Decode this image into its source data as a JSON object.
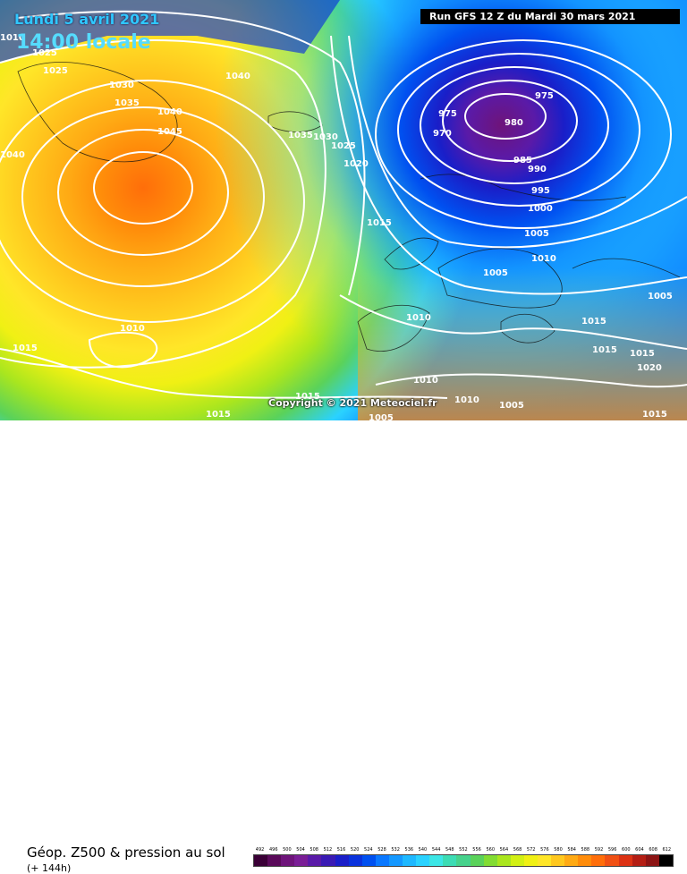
{
  "header": {
    "date": "Lundi 5 avril 2021",
    "time": "14:00 locale",
    "run": "Run GFS 12 Z du Mardi 30 mars 2021"
  },
  "copyright": "Copyright © 2021 Meteociel.fr",
  "footer": {
    "title": "Géop. Z500 & pression au sol",
    "lead": "(+ 144h)"
  },
  "isobars": [
    {
      "label": "1010"
    },
    {
      "label": "1025"
    },
    {
      "label": "1025"
    },
    {
      "label": "1030"
    },
    {
      "label": "1035"
    },
    {
      "label": "1040"
    },
    {
      "label": "1040"
    },
    {
      "label": "1045"
    },
    {
      "label": "1040"
    },
    {
      "label": "1035"
    },
    {
      "label": "1030"
    },
    {
      "label": "1025"
    },
    {
      "label": "1020"
    },
    {
      "label": "1015"
    },
    {
      "label": "975"
    },
    {
      "label": "970"
    },
    {
      "label": "975"
    },
    {
      "label": "980"
    },
    {
      "label": "985"
    },
    {
      "label": "990"
    },
    {
      "label": "995"
    },
    {
      "label": "1000"
    },
    {
      "label": "1005"
    },
    {
      "label": "1010"
    },
    {
      "label": "1005"
    },
    {
      "label": "1005"
    },
    {
      "label": "1010"
    },
    {
      "label": "1015"
    },
    {
      "label": "1015"
    },
    {
      "label": "1015"
    },
    {
      "label": "1020"
    },
    {
      "label": "1010"
    },
    {
      "label": "1015"
    },
    {
      "label": "1010"
    },
    {
      "label": "1010"
    },
    {
      "label": "1005"
    },
    {
      "label": "1015"
    },
    {
      "label": "1015"
    },
    {
      "label": "1005"
    },
    {
      "label": "1015"
    }
  ],
  "legend": {
    "values": [
      "492",
      "496",
      "500",
      "504",
      "508",
      "512",
      "516",
      "520",
      "524",
      "528",
      "532",
      "536",
      "540",
      "544",
      "548",
      "552",
      "556",
      "560",
      "564",
      "568",
      "572",
      "576",
      "580",
      "584",
      "588",
      "592",
      "596",
      "600",
      "604",
      "608",
      "612"
    ],
    "colors": [
      "#3a0036",
      "#5a0a5a",
      "#6e147a",
      "#7a1e96",
      "#5a1aa8",
      "#3a1ab4",
      "#1a1ec8",
      "#0a32dc",
      "#0050f0",
      "#0a78ff",
      "#1498ff",
      "#1eb8ff",
      "#2ad2ff",
      "#3ce6e6",
      "#3cdcb4",
      "#46d28c",
      "#5ad25a",
      "#82dc32",
      "#aae61e",
      "#d2f014",
      "#f0f014",
      "#ffe628",
      "#ffc81e",
      "#ffaa14",
      "#ff8c0a",
      "#ff6e0a",
      "#f05014",
      "#dc3214",
      "#b41e14",
      "#8c1414",
      "#000000"
    ]
  }
}
